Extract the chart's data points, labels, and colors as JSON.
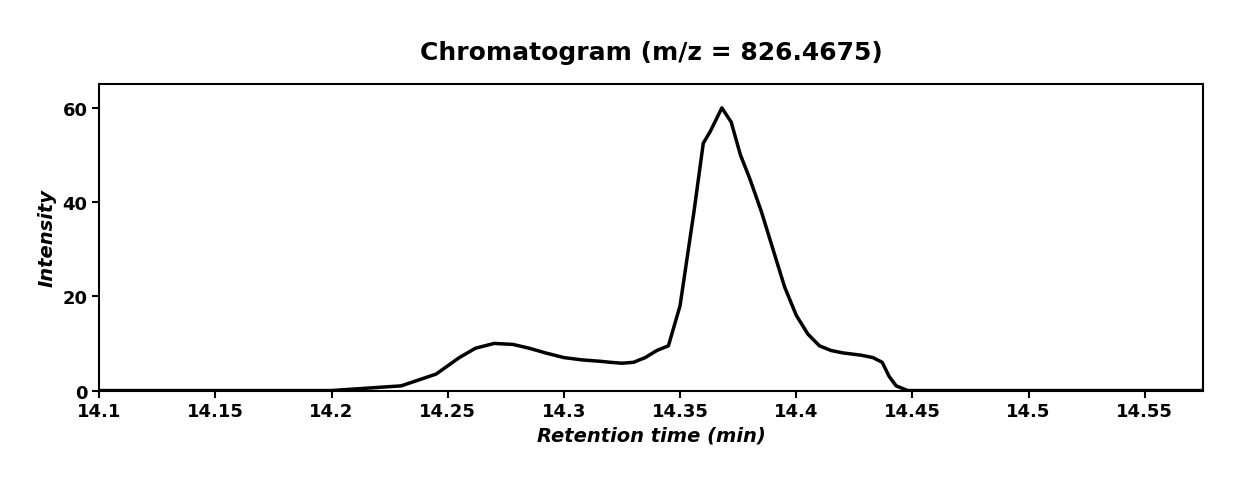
{
  "title": "Chromatogram (m/z = 826.4675)",
  "xlabel": "Retention time (min)",
  "ylabel": "Intensity",
  "xlim": [
    14.1,
    14.575
  ],
  "ylim": [
    0,
    65
  ],
  "xticks": [
    14.1,
    14.15,
    14.2,
    14.25,
    14.3,
    14.35,
    14.4,
    14.45,
    14.5,
    14.55
  ],
  "xtick_labels": [
    "14.1",
    "14.15",
    "14.2",
    "14.25",
    "14.3",
    "14.35",
    "14.4",
    "14.45",
    "14.5",
    "14.55"
  ],
  "yticks": [
    0,
    20,
    40,
    60
  ],
  "ytick_labels": [
    "0",
    "20",
    "40",
    "60"
  ],
  "line_color": "#000000",
  "line_width": 2.5,
  "background_color": "#ffffff",
  "title_fontsize": 18,
  "label_fontsize": 14,
  "tick_fontsize": 13,
  "x": [
    14.1,
    14.2,
    14.23,
    14.245,
    14.255,
    14.262,
    14.27,
    14.278,
    14.285,
    14.292,
    14.3,
    14.308,
    14.316,
    14.32,
    14.325,
    14.33,
    14.335,
    14.34,
    14.345,
    14.35,
    14.353,
    14.356,
    14.36,
    14.363,
    14.365,
    14.368,
    14.372,
    14.376,
    14.38,
    14.385,
    14.39,
    14.395,
    14.4,
    14.405,
    14.41,
    14.415,
    14.42,
    14.428,
    14.433,
    14.437,
    14.44,
    14.443,
    14.448,
    14.46,
    14.5,
    14.55,
    14.575
  ],
  "y": [
    0.0,
    0.0,
    1.0,
    3.5,
    7.0,
    9.0,
    10.0,
    9.8,
    9.0,
    8.0,
    7.0,
    6.5,
    6.2,
    6.0,
    5.8,
    6.0,
    7.0,
    8.5,
    9.5,
    18.0,
    28.0,
    38.0,
    52.5,
    55.0,
    57.0,
    60.0,
    57.0,
    50.0,
    45.0,
    38.0,
    30.0,
    22.0,
    16.0,
    12.0,
    9.5,
    8.5,
    8.0,
    7.5,
    7.0,
    6.0,
    3.0,
    1.0,
    0.0,
    0.0,
    0.0,
    0.0,
    0.0
  ]
}
